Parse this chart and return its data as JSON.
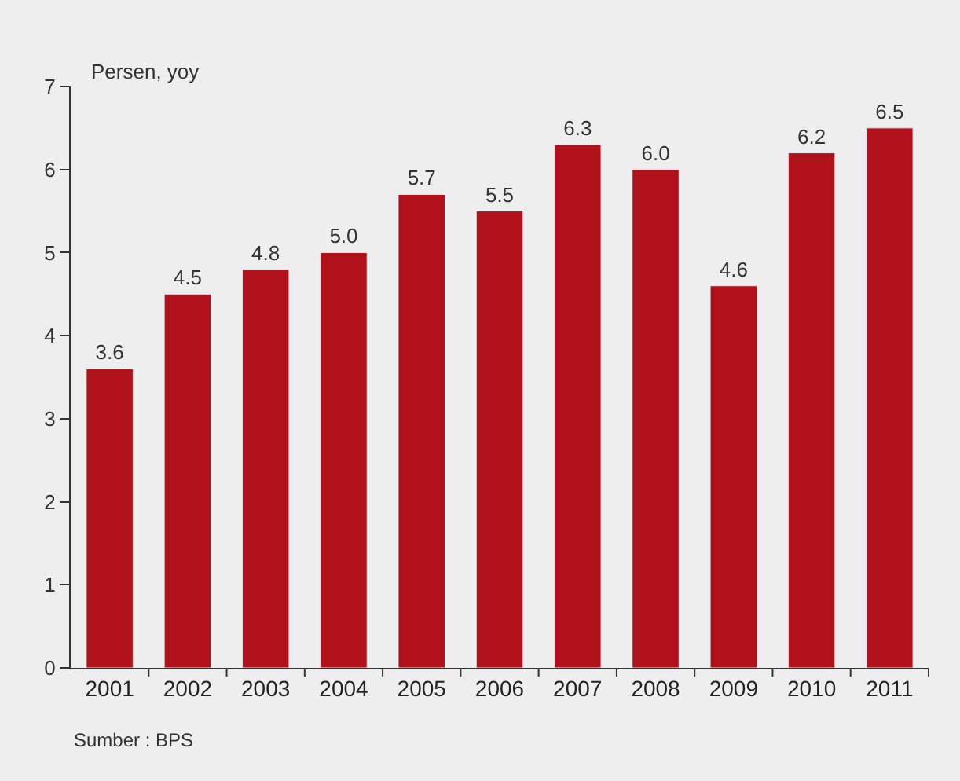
{
  "chart_data": {
    "type": "bar",
    "ylabel": "Persen, yoy",
    "categories": [
      "2001",
      "2002",
      "2003",
      "2004",
      "2005",
      "2006",
      "2007",
      "2008",
      "2009",
      "2010",
      "2011"
    ],
    "values": [
      3.6,
      4.5,
      4.8,
      5.0,
      5.7,
      5.5,
      6.3,
      6.0,
      4.6,
      6.2,
      6.5
    ],
    "value_labels": [
      "3.6",
      "4.5",
      "4.8",
      "5.0",
      "5.7",
      "5.5",
      "6.3",
      "6.0",
      "4.6",
      "6.2",
      "6.5"
    ],
    "color": "#b0111a",
    "ylim": [
      0,
      7
    ],
    "yticks": [
      0,
      1,
      2,
      3,
      4,
      5,
      6,
      7
    ],
    "grid": false,
    "annotations": [
      "Sumber : BPS"
    ]
  }
}
